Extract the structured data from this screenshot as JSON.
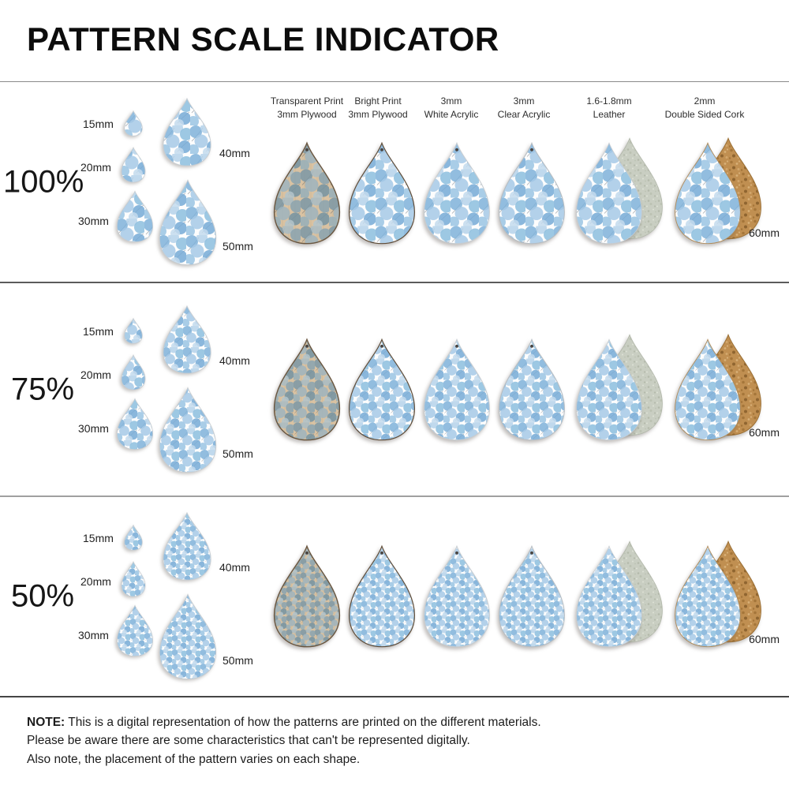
{
  "title": "PATTERN SCALE INDICATOR",
  "material_headers": [
    {
      "line1": "Transparent Print",
      "line2": "3mm Plywood"
    },
    {
      "line1": "Bright Print",
      "line2": "3mm Plywood"
    },
    {
      "line1": "3mm",
      "line2": "White Acrylic"
    },
    {
      "line1": "3mm",
      "line2": "Clear Acrylic"
    },
    {
      "line1": "1.6-1.8mm",
      "line2": "Leather"
    },
    {
      "line1": "2mm",
      "line2": "Double Sided Cork"
    }
  ],
  "rows": [
    {
      "scale_label": "100%",
      "pattern_scale_percent": "100"
    },
    {
      "scale_label": "75%",
      "pattern_scale_percent": "75"
    },
    {
      "scale_label": "50%",
      "pattern_scale_percent": "50"
    }
  ],
  "size_labels": {
    "s15": "15mm",
    "s20": "20mm",
    "s30": "30mm",
    "s40": "40mm",
    "s50": "50mm",
    "s60": "60mm"
  },
  "note": {
    "label": "NOTE:",
    "line1": "This is a digital representation of how the patterns are printed on the different materials.",
    "line2": "Please be aware there are some characteristics that can't be represented digitally.",
    "line3": "Also note, the placement of the pattern varies on each shape."
  },
  "colors": {
    "background": "#ffffff",
    "print_blues": [
      "#7fb2da",
      "#b5d3ea",
      "#8cbede",
      "#a6c9e6",
      "#76abd6",
      "#9ac4e3",
      "#c3dbee"
    ],
    "stem": "#4a5560",
    "plywood": "#d9c2a2",
    "plywood_grain": "#cbb28f",
    "plywood_blues": [
      "#7d98a6",
      "#a9bcc4",
      "#8aa4b0",
      "#9fb4be",
      "#7593a2",
      "#96afba",
      "#b3c4cb"
    ],
    "plywood_edge": "#6a563f",
    "acrylic_edge": "#c6ccd1",
    "leather_back": "#c9cec2",
    "leather_specks": [
      "#b4baab",
      "#dde1d6",
      "#bcc2b3"
    ],
    "cork": "#c08f51",
    "cork_specks": [
      "#a5763a",
      "#d8b078",
      "#8f6530",
      "#d2a76c"
    ]
  }
}
